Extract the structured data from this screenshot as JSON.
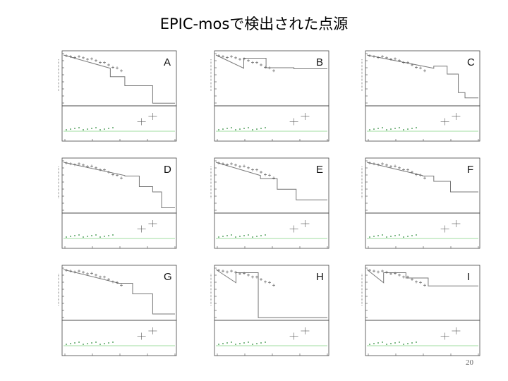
{
  "title": "EPIC-mosで検出された点源",
  "page_number": "20",
  "colors": {
    "frame": "#444444",
    "curve": "#777777",
    "data": "#555555",
    "ratio_line": "#7fd07f",
    "ratio_points": "#2e8b3a"
  },
  "panels": [
    {
      "id": "A",
      "letter": "A"
    },
    {
      "id": "B",
      "letter": "B"
    },
    {
      "id": "C",
      "letter": "C"
    },
    {
      "id": "D",
      "letter": "D"
    },
    {
      "id": "E",
      "letter": "E"
    },
    {
      "id": "F",
      "letter": "F"
    },
    {
      "id": "G",
      "letter": "G"
    },
    {
      "id": "H",
      "letter": "H"
    },
    {
      "id": "I",
      "letter": "I"
    }
  ]
}
